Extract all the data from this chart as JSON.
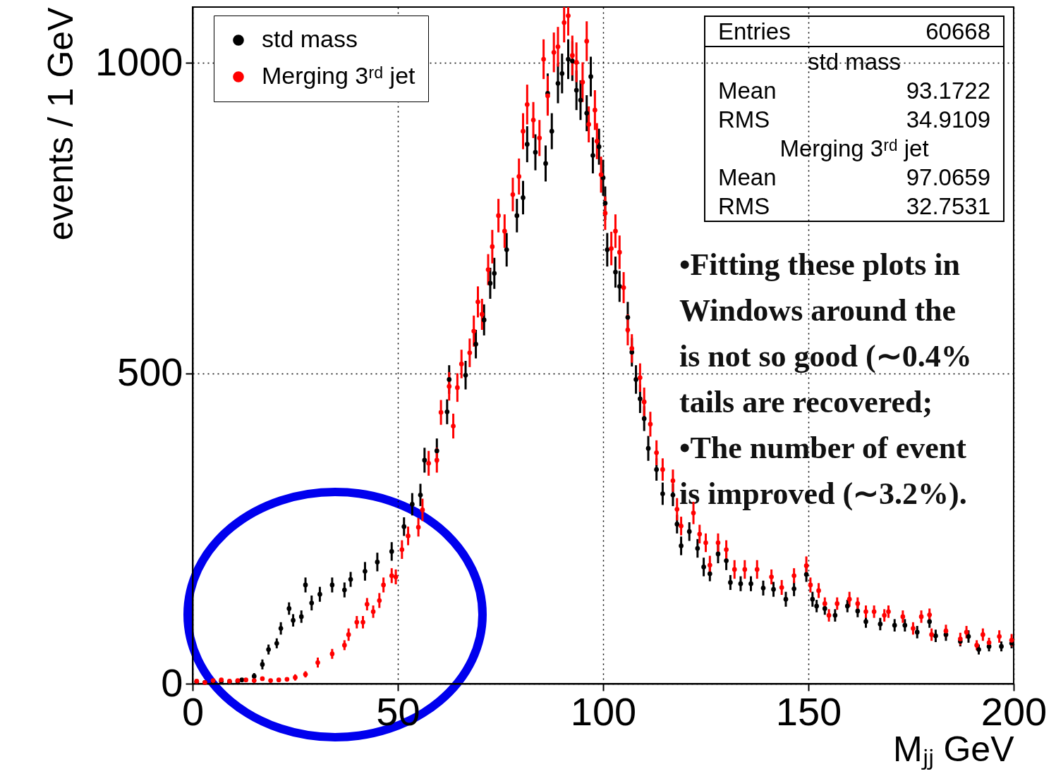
{
  "chart_data": {
    "type": "scatter",
    "xlabel": "Mⱼⱼ GeV",
    "ylabel": "events / 1 GeV",
    "xlim": [
      0,
      200
    ],
    "xticks": [
      0,
      50,
      100,
      150,
      200
    ],
    "ylim": [
      0,
      1090
    ],
    "yticks": [
      0,
      500,
      1000
    ],
    "grid": true,
    "legend": "top left",
    "marker": "circle",
    "annotations": [
      "Entries 60668",
      "std mass",
      "Mean 93.1722",
      "RMS 34.9109",
      "Merging 3ʳᵈ jet",
      "Mean 97.0659",
      "RMS 32.7531",
      "•Fitting these plots in",
      "Windows around the",
      "is not so good (∼0.4%",
      "tails are recovered;",
      "•The number of event",
      "is improved (∼3.2%)."
    ],
    "series": [
      {
        "name": "std mass",
        "color": "#000000",
        "x": [
          1,
          3,
          5,
          7,
          9,
          11,
          12,
          15,
          17,
          18.5,
          20.5,
          21.5,
          23.5,
          24.5,
          26.5,
          27.5,
          29,
          31,
          34,
          37,
          38.5,
          42,
          45,
          48.5,
          51.5,
          53.5,
          55.5,
          56.5,
          59.5,
          62,
          62.5,
          66.5,
          69,
          71,
          72.5,
          73.5,
          76.5,
          79,
          80.5,
          81.5,
          83.5,
          86,
          86.5,
          87.5,
          89,
          90,
          91.5,
          92.5,
          93.5,
          94.5,
          96,
          97,
          97.5,
          99,
          100,
          100.5,
          101,
          103,
          104,
          106,
          107,
          108,
          109,
          110,
          111,
          113,
          114.5,
          117,
          118,
          119,
          121,
          123,
          124.5,
          126,
          128,
          130,
          131,
          133.5,
          136,
          139,
          141.5,
          144.5,
          146.5,
          149.5,
          151,
          152,
          154,
          156.5,
          159.5,
          162,
          164,
          167.5,
          171,
          173.5,
          176.5,
          179.5,
          181,
          183.5,
          187,
          189,
          191.5,
          194,
          197,
          199.5
        ],
        "values": [
          3,
          2,
          3,
          4,
          3,
          4,
          6,
          12,
          31,
          55,
          65,
          89,
          121,
          102,
          108,
          159,
          130,
          144,
          159,
          151,
          168,
          181,
          196,
          213,
          253,
          289,
          304,
          360,
          375,
          438,
          490,
          497,
          547,
          586,
          645,
          661,
          699,
          754,
          783,
          869,
          856,
          838,
          951,
          890,
          967,
          983,
          1006,
          1003,
          956,
          940,
          919,
          978,
          851,
          865,
          815,
          774,
          699,
          663,
          640,
          590,
          534,
          490,
          459,
          427,
          379,
          345,
          306,
          304,
          257,
          222,
          245,
          218,
          188,
          177,
          209,
          198,
          163,
          161,
          161,
          154,
          152,
          136,
          153,
          176,
          136,
          125,
          121,
          110,
          125,
          117,
          100,
          96,
          94,
          94,
          83,
          100,
          77,
          79,
          68,
          76,
          55,
          60,
          60,
          65
        ],
        "errors": [
          3,
          3,
          3,
          3,
          3,
          3,
          3,
          5,
          8,
          8,
          8,
          10,
          10,
          10,
          10,
          12,
          12,
          12,
          12,
          12,
          12,
          15,
          15,
          15,
          15,
          18,
          18,
          20,
          20,
          20,
          23,
          23,
          23,
          25,
          25,
          25,
          27,
          27,
          27,
          29,
          29,
          29,
          32,
          29,
          32,
          32,
          32,
          32,
          32,
          32,
          29,
          32,
          29,
          29,
          29,
          27,
          27,
          25,
          25,
          25,
          23,
          23,
          23,
          20,
          20,
          18,
          18,
          18,
          15,
          15,
          15,
          15,
          15,
          12,
          15,
          15,
          12,
          12,
          12,
          12,
          12,
          12,
          12,
          12,
          12,
          10,
          10,
          10,
          10,
          10,
          10,
          10,
          10,
          10,
          10,
          10,
          10,
          10,
          8,
          10,
          8,
          8,
          8,
          8
        ]
      },
      {
        "name": "Merging 3ʳᵈ jet",
        "color": "#ff0000",
        "x": [
          1,
          3,
          5,
          7,
          9,
          11,
          13,
          15,
          17,
          19,
          21,
          23,
          25,
          27.5,
          30.5,
          34,
          37,
          38,
          40,
          41.5,
          42.5,
          44,
          45.5,
          46.5,
          48.5,
          49.5,
          51,
          52.5,
          55,
          56,
          57.5,
          59.5,
          60.5,
          62.5,
          63.5,
          64.5,
          65.5,
          67.5,
          68.5,
          69.5,
          70.5,
          72,
          73,
          74.5,
          76,
          78,
          79.5,
          80.5,
          81.5,
          83,
          84.5,
          85.5,
          86.5,
          88,
          89,
          90.5,
          91.5,
          92.5,
          93.5,
          95,
          96,
          96.5,
          98,
          98.5,
          99.5,
          100.5,
          102,
          103,
          104,
          105,
          106,
          107,
          109,
          110,
          111.5,
          113,
          114.5,
          117,
          118,
          119,
          122,
          123.5,
          125,
          126,
          128,
          130,
          132,
          134.5,
          137.5,
          141,
          143.5,
          146.5,
          149.5,
          150.5,
          152.5,
          154,
          155,
          157,
          160,
          162,
          164,
          166,
          168.5,
          169.5,
          173,
          175.5,
          177.5,
          179.5,
          180,
          183.5,
          187,
          188.5,
          191,
          192.5,
          194,
          196.5,
          199.5
        ],
        "values": [
          4,
          2,
          5,
          6,
          4,
          5,
          6,
          5,
          8,
          5,
          6,
          7,
          10,
          15,
          34,
          48,
          62,
          79,
          99,
          99,
          128,
          116,
          134,
          159,
          174,
          172,
          216,
          238,
          252,
          280,
          355,
          360,
          437,
          479,
          415,
          477,
          515,
          533,
          568,
          615,
          595,
          667,
          704,
          754,
          729,
          788,
          817,
          890,
          933,
          908,
          879,
          1006,
          947,
          1017,
          1026,
          1065,
          1076,
          1012,
          1001,
          969,
          1035,
          901,
          924,
          874,
          820,
          758,
          701,
          729,
          695,
          638,
          570,
          540,
          493,
          454,
          418,
          372,
          345,
          327,
          281,
          254,
          275,
          241,
          227,
          191,
          227,
          216,
          184,
          184,
          184,
          172,
          155,
          174,
          190,
          159,
          150,
          129,
          110,
          129,
          136,
          129,
          116,
          116,
          110,
          116,
          108,
          89,
          108,
          111,
          79,
          85,
          72,
          83,
          62,
          79,
          66,
          76,
          70
        ],
        "errors": [
          3,
          3,
          3,
          3,
          3,
          3,
          3,
          3,
          3,
          3,
          3,
          3,
          5,
          5,
          8,
          8,
          8,
          10,
          10,
          10,
          10,
          10,
          12,
          12,
          12,
          12,
          15,
          15,
          15,
          18,
          20,
          20,
          20,
          23,
          20,
          23,
          23,
          23,
          25,
          25,
          25,
          25,
          27,
          27,
          27,
          27,
          29,
          29,
          32,
          29,
          29,
          32,
          32,
          32,
          32,
          [
            1033,
            1090
          ],
          [
            1044,
            1090
          ],
          32,
          32,
          32,
          32,
          29,
          32,
          29,
          29,
          27,
          27,
          27,
          27,
          25,
          25,
          23,
          23,
          23,
          20,
          20,
          18,
          18,
          18,
          15,
          18,
          15,
          15,
          15,
          15,
          15,
          15,
          15,
          15,
          12,
          12,
          12,
          15,
          12,
          12,
          10,
          10,
          10,
          12,
          10,
          10,
          10,
          10,
          10,
          10,
          10,
          10,
          10,
          10,
          10,
          10,
          10,
          8,
          10,
          8,
          10,
          10
        ]
      }
    ]
  }
}
